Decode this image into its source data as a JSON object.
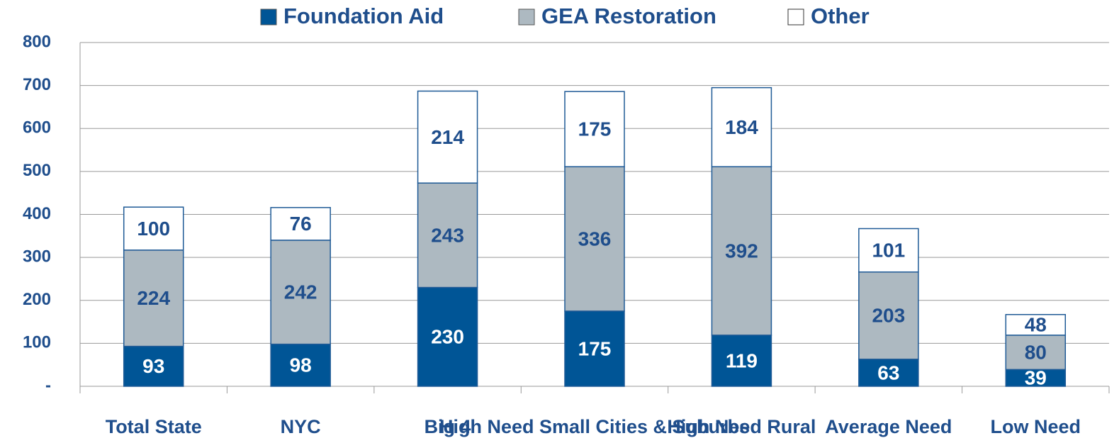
{
  "chart_data": {
    "type": "stacked_bar",
    "categories": [
      "Total State",
      "NYC",
      "Big 4",
      "High Need Small Cities & Suburbs",
      "High Need Rural",
      "Average Need",
      "Low Need"
    ],
    "series": [
      {
        "name": "Foundation Aid",
        "color": "#005596",
        "values": [
          93,
          98,
          230,
          175,
          119,
          63,
          39
        ]
      },
      {
        "name": "GEA Restoration",
        "color": "#adb9c1",
        "values": [
          224,
          242,
          243,
          336,
          392,
          203,
          80
        ]
      },
      {
        "name": "Other",
        "color": "#ffffff",
        "values": [
          100,
          76,
          214,
          175,
          184,
          101,
          48
        ]
      }
    ],
    "ylim": [
      0,
      800
    ],
    "yticks": [
      {
        "value": 0,
        "label": "-"
      },
      100,
      200,
      300,
      400,
      500,
      600,
      700,
      800
    ],
    "grid": true,
    "legend": "top"
  }
}
